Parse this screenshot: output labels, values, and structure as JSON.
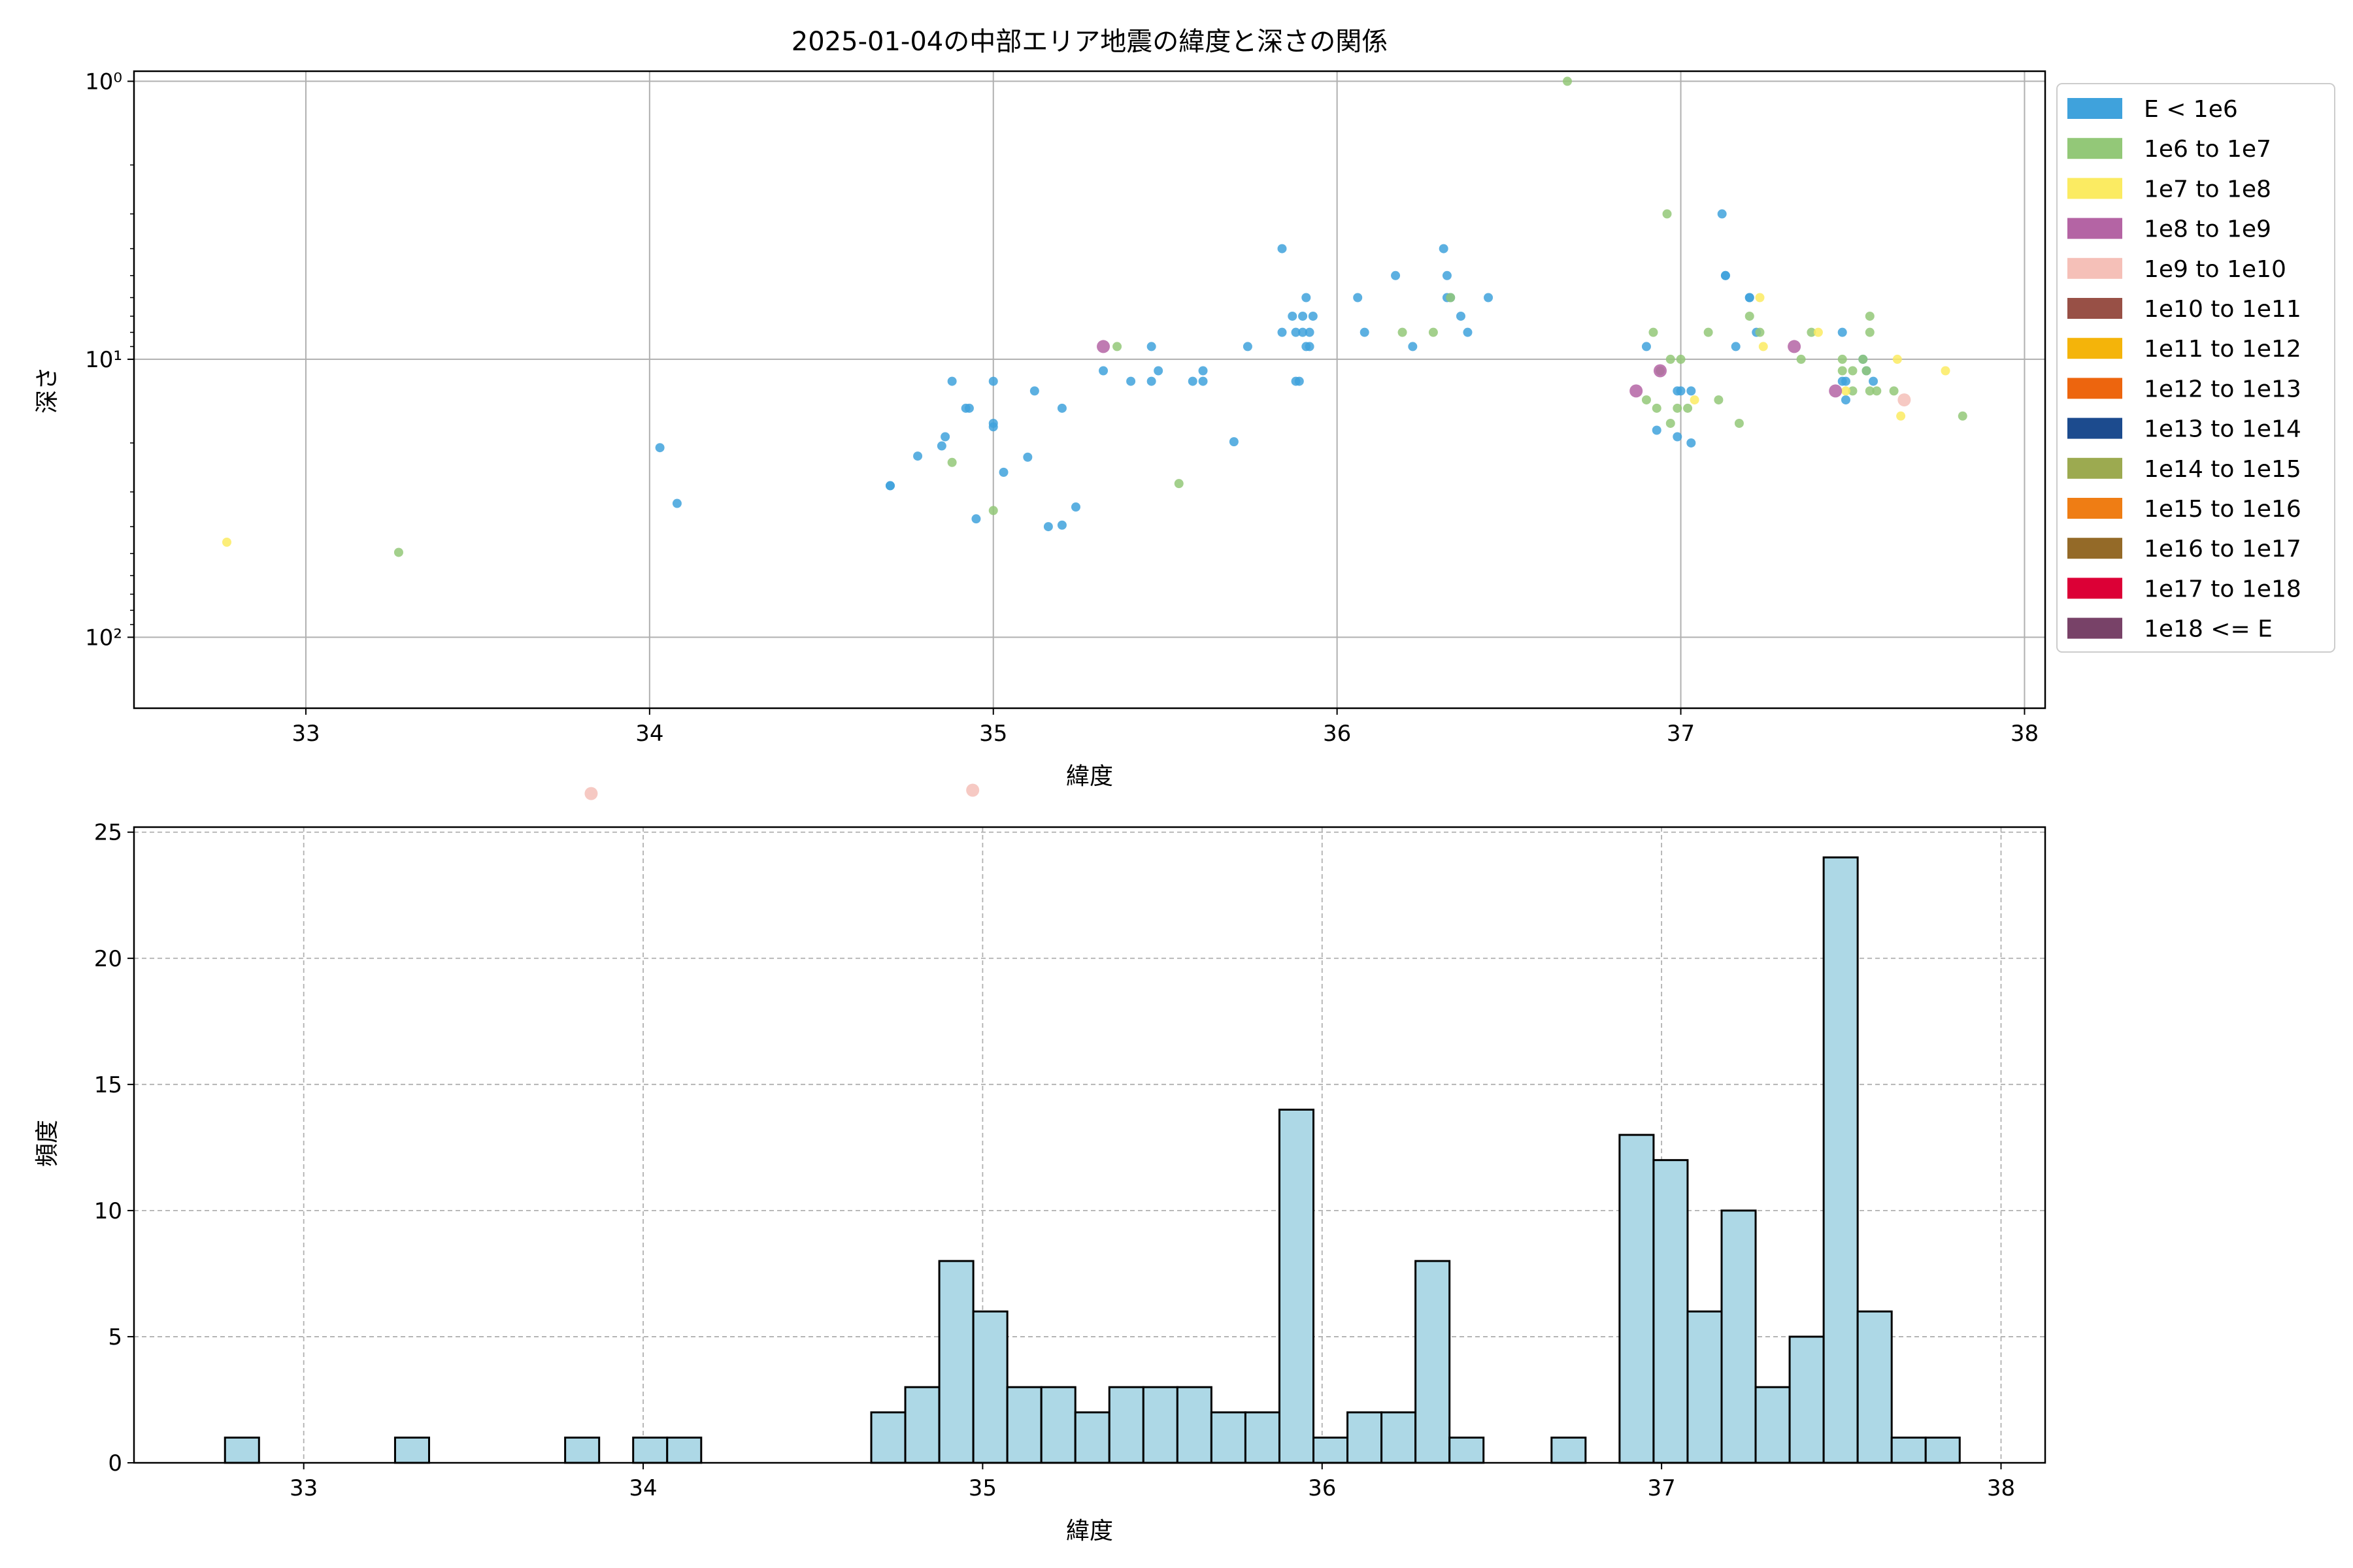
{
  "colors": {
    "hist_bar_fill": "#add8e6",
    "hist_bar_edge": "#000000",
    "grid": "#b0b0b0"
  },
  "chart_data": [
    {
      "type": "scatter",
      "title": "2025-01-04の中部エリア地震の緯度と深さの関係",
      "xlabel": "緯度",
      "ylabel": "深さ",
      "xlim": [
        32.5,
        38.06
      ],
      "xticks": [
        33,
        34,
        35,
        36,
        37,
        38
      ],
      "yscale": "log",
      "y_inverted": true,
      "ylim_top_to_bottom": [
        0.92,
        180
      ],
      "yticks": [
        {
          "value": 1,
          "label": "10⁰"
        },
        {
          "value": 10,
          "label": "10¹"
        },
        {
          "value": 100,
          "label": "10²"
        }
      ],
      "grid": true,
      "legend": "outside-right",
      "legend_entries": [
        {
          "label": "E < 1e6",
          "color": "#3fa2dc"
        },
        {
          "label": "1e6 to 1e7",
          "color": "#93c878"
        },
        {
          "label": "1e7 to 1e8",
          "color": "#fbeb62"
        },
        {
          "label": "1e8 to 1e9",
          "color": "#b464a4"
        },
        {
          "label": "1e9 to 1e10",
          "color": "#f5c0b8"
        },
        {
          "label": "1e10 to 1e11",
          "color": "#985046"
        },
        {
          "label": "1e11 to 1e12",
          "color": "#f4b40a"
        },
        {
          "label": "1e12 to 1e13",
          "color": "#ed650e"
        },
        {
          "label": "1e13 to 1e14",
          "color": "#1c4b8e"
        },
        {
          "label": "1e14 to 1e15",
          "color": "#9caa50"
        },
        {
          "label": "1e15 to 1e16",
          "color": "#ef7d14"
        },
        {
          "label": "1e16 to 1e17",
          "color": "#946a28"
        },
        {
          "label": "1e17 to 1e18",
          "color": "#dc0036"
        },
        {
          "label": "1e18 <= E",
          "color": "#784268"
        }
      ],
      "series": [
        {
          "class": 0,
          "points": [
            [
              34.03,
              20.8
            ],
            [
              34.08,
              33.0
            ],
            [
              34.7,
              28.5
            ],
            [
              34.7,
              28.5
            ],
            [
              34.78,
              22.3
            ],
            [
              34.85,
              20.5
            ],
            [
              34.86,
              19.0
            ],
            [
              34.88,
              12.0
            ],
            [
              34.92,
              15.0
            ],
            [
              34.93,
              15.0
            ],
            [
              34.95,
              37.5
            ],
            [
              35.0,
              17.5
            ],
            [
              35.0,
              17.0
            ],
            [
              35.0,
              12.0
            ],
            [
              35.03,
              25.5
            ],
            [
              35.1,
              22.5
            ],
            [
              35.12,
              13.0
            ],
            [
              35.16,
              40.0
            ],
            [
              35.2,
              39.5
            ],
            [
              35.2,
              15.0
            ],
            [
              35.24,
              34.0
            ],
            [
              35.32,
              11.0
            ],
            [
              35.4,
              12.0
            ],
            [
              35.46,
              9.0
            ],
            [
              35.46,
              12.0
            ],
            [
              35.48,
              11.0
            ],
            [
              35.58,
              12.0
            ],
            [
              35.61,
              11.0
            ],
            [
              35.61,
              12.0
            ],
            [
              35.7,
              19.8
            ],
            [
              35.74,
              9.0
            ],
            [
              35.84,
              4.0
            ],
            [
              35.84,
              8.0
            ],
            [
              35.87,
              7.0
            ],
            [
              35.88,
              8.0
            ],
            [
              35.88,
              12.0
            ],
            [
              35.89,
              12.0
            ],
            [
              35.9,
              7.0
            ],
            [
              35.9,
              8.0
            ],
            [
              35.91,
              6.0
            ],
            [
              35.91,
              9.0
            ],
            [
              35.92,
              8.0
            ],
            [
              35.92,
              9.0
            ],
            [
              35.93,
              7.0
            ],
            [
              36.06,
              6.0
            ],
            [
              36.08,
              8.0
            ],
            [
              36.17,
              5.0
            ],
            [
              36.22,
              9.0
            ],
            [
              36.31,
              4.0
            ],
            [
              36.32,
              5.0
            ],
            [
              36.32,
              6.0
            ],
            [
              36.33,
              6.0
            ],
            [
              36.36,
              7.0
            ],
            [
              36.38,
              8.0
            ],
            [
              36.44,
              6.0
            ],
            [
              36.9,
              9.0
            ],
            [
              36.93,
              18.0
            ],
            [
              36.99,
              13.0
            ],
            [
              36.99,
              19.0
            ],
            [
              37.0,
              13.0
            ],
            [
              37.03,
              20.0
            ],
            [
              37.03,
              13.0
            ],
            [
              37.12,
              3.0
            ],
            [
              37.13,
              5.0
            ],
            [
              37.13,
              5.0
            ],
            [
              37.16,
              9.0
            ],
            [
              37.2,
              6.0
            ],
            [
              37.2,
              6.0
            ],
            [
              37.22,
              8.0
            ],
            [
              37.47,
              8.0
            ],
            [
              37.47,
              12.0
            ],
            [
              37.48,
              12.0
            ],
            [
              37.48,
              14.0
            ],
            [
              37.53,
              10.0
            ],
            [
              37.54,
              11.0
            ],
            [
              37.56,
              12.0
            ]
          ]
        },
        {
          "class": 1,
          "points": [
            [
              33.27,
              49.5
            ],
            [
              34.88,
              23.5
            ],
            [
              35.0,
              35.0
            ],
            [
              35.36,
              9.0
            ],
            [
              35.54,
              28.0
            ],
            [
              36.19,
              8.0
            ],
            [
              36.28,
              8.0
            ],
            [
              36.33,
              6.0
            ],
            [
              36.67,
              1.0
            ],
            [
              36.9,
              14.0
            ],
            [
              36.92,
              8.0
            ],
            [
              36.93,
              15.0
            ],
            [
              36.94,
              11.0
            ],
            [
              36.96,
              3.0
            ],
            [
              36.97,
              10.0
            ],
            [
              36.97,
              17.0
            ],
            [
              36.99,
              15.0
            ],
            [
              37.0,
              10.0
            ],
            [
              37.02,
              15.0
            ],
            [
              37.08,
              8.0
            ],
            [
              37.11,
              14.0
            ],
            [
              37.17,
              17.0
            ],
            [
              37.2,
              7.0
            ],
            [
              37.23,
              8.0
            ],
            [
              37.35,
              10.0
            ],
            [
              37.38,
              8.0
            ],
            [
              37.47,
              11.0
            ],
            [
              37.47,
              10.0
            ],
            [
              37.5,
              11.0
            ],
            [
              37.5,
              13.0
            ],
            [
              37.53,
              10.0
            ],
            [
              37.54,
              11.0
            ],
            [
              37.55,
              7.0
            ],
            [
              37.55,
              8.0
            ],
            [
              37.55,
              13.0
            ],
            [
              37.57,
              13.0
            ],
            [
              37.62,
              13.0
            ],
            [
              37.82,
              16.0
            ]
          ]
        },
        {
          "class": 2,
          "points": [
            [
              32.77,
              45.5
            ],
            [
              37.04,
              14.0
            ],
            [
              37.23,
              6.0
            ],
            [
              37.24,
              9.0
            ],
            [
              37.4,
              8.0
            ],
            [
              37.48,
              13.0
            ],
            [
              37.63,
              10.0
            ],
            [
              37.64,
              16.0
            ],
            [
              37.77,
              11.0
            ]
          ]
        },
        {
          "class": 3,
          "points": [
            [
              35.32,
              9.0
            ],
            [
              36.87,
              13.0
            ],
            [
              36.94,
              11.0
            ],
            [
              37.33,
              9.0
            ],
            [
              37.45,
              13.0
            ]
          ]
        },
        {
          "class": 4,
          "points": [
            [
              33.83,
              365.0
            ],
            [
              34.94,
              355.0
            ],
            [
              37.65,
              14.0
            ]
          ]
        }
      ]
    },
    {
      "type": "bar",
      "subtype": "histogram",
      "xlabel": "緯度",
      "ylabel": "頻度",
      "xlim": [
        32.5,
        38.13
      ],
      "ylim": [
        0,
        25.2
      ],
      "xticks": [
        33,
        34,
        35,
        36,
        37,
        38
      ],
      "yticks": [
        0,
        5,
        10,
        15,
        20,
        25
      ],
      "grid": true,
      "bin_start": 32.7681,
      "bin_width": 0.1002,
      "values": [
        1,
        0,
        0,
        0,
        0,
        1,
        0,
        0,
        0,
        0,
        1,
        0,
        1,
        1,
        0,
        0,
        0,
        0,
        0,
        2,
        3,
        8,
        6,
        3,
        3,
        2,
        3,
        3,
        3,
        2,
        2,
        14,
        1,
        2,
        2,
        8,
        1,
        0,
        0,
        1,
        0,
        13,
        12,
        6,
        10,
        3,
        5,
        24,
        6,
        1,
        1
      ]
    }
  ]
}
